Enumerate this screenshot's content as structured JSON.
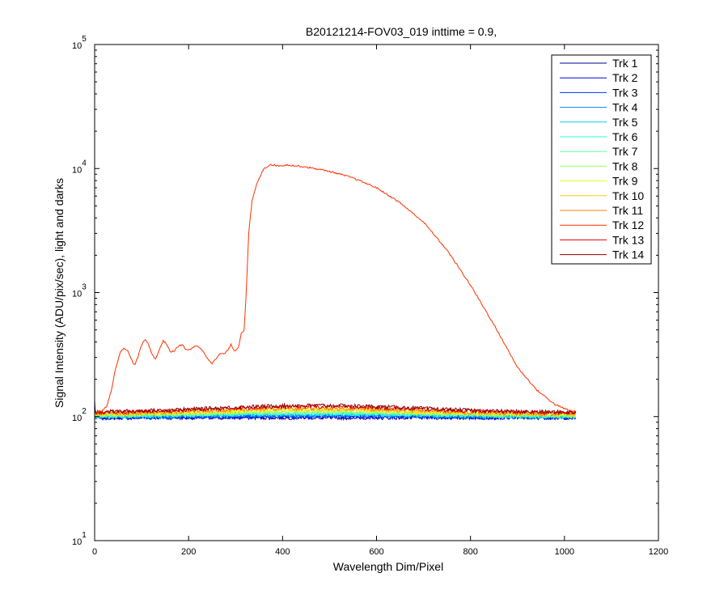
{
  "chart_data": {
    "type": "line",
    "title": "B20121214-FOV03_019 inttime = 0.9,",
    "xlabel": "Wavelength Dim/Pixel",
    "ylabel": "Signal Intensity (ADU/pix/sec), light and darks",
    "xlim": [
      0,
      1200
    ],
    "ylim": [
      10,
      100000
    ],
    "yscale": "log",
    "x_ticks": [
      "0",
      "200",
      "400",
      "600",
      "800",
      "1000",
      "1200"
    ],
    "y_ticks": [
      {
        "base": "10",
        "exp": "1"
      },
      {
        "base": "10",
        "exp": "2"
      },
      {
        "base": "10",
        "exp": "3"
      },
      {
        "base": "10",
        "exp": "4"
      },
      {
        "base": "10",
        "exp": "5"
      }
    ],
    "grid": false,
    "legend_position": "top-right",
    "series": [
      {
        "name": "Trk 1",
        "color": "#00008f",
        "baseline": 98
      },
      {
        "name": "Trk 2",
        "color": "#0000df",
        "baseline": 98
      },
      {
        "name": "Trk 3",
        "color": "#0030ff",
        "baseline": 99
      },
      {
        "name": "Trk 4",
        "color": "#0080ff",
        "baseline": 99
      },
      {
        "name": "Trk 5",
        "color": "#00cfff",
        "baseline": 100
      },
      {
        "name": "Trk 6",
        "color": "#20ffdf",
        "baseline": 100
      },
      {
        "name": "Trk 7",
        "color": "#60ff9f",
        "baseline": 101
      },
      {
        "name": "Trk 8",
        "color": "#9fff60",
        "baseline": 102
      },
      {
        "name": "Trk 9",
        "color": "#dfff20",
        "baseline": 103
      },
      {
        "name": "Trk 10",
        "color": "#ffcf00",
        "baseline": 104
      },
      {
        "name": "Trk 11",
        "color": "#ff8000",
        "baseline": 105
      },
      {
        "name": "Trk 12",
        "color": "#ff3000",
        "baseline": 106
      },
      {
        "name": "Trk 13",
        "color": "#df0000",
        "baseline": 107
      },
      {
        "name": "Trk 14",
        "color": "#8f0000",
        "baseline": 108
      }
    ],
    "highlighted_series": {
      "name": "Trk 12",
      "color": "#ff3000",
      "points": [
        [
          0,
          108
        ],
        [
          15,
          110
        ],
        [
          25,
          120
        ],
        [
          35,
          160
        ],
        [
          45,
          250
        ],
        [
          55,
          330
        ],
        [
          62,
          360
        ],
        [
          70,
          340
        ],
        [
          78,
          290
        ],
        [
          85,
          260
        ],
        [
          92,
          300
        ],
        [
          100,
          380
        ],
        [
          108,
          420
        ],
        [
          115,
          380
        ],
        [
          122,
          320
        ],
        [
          130,
          290
        ],
        [
          138,
          350
        ],
        [
          146,
          410
        ],
        [
          154,
          380
        ],
        [
          162,
          330
        ],
        [
          170,
          340
        ],
        [
          178,
          370
        ],
        [
          186,
          380
        ],
        [
          194,
          350
        ],
        [
          202,
          345
        ],
        [
          210,
          360
        ],
        [
          218,
          375
        ],
        [
          226,
          355
        ],
        [
          234,
          320
        ],
        [
          242,
          290
        ],
        [
          250,
          270
        ],
        [
          258,
          290
        ],
        [
          266,
          320
        ],
        [
          274,
          320
        ],
        [
          282,
          335
        ],
        [
          290,
          380
        ],
        [
          298,
          340
        ],
        [
          306,
          360
        ],
        [
          312,
          470
        ],
        [
          318,
          500
        ],
        [
          322,
          900
        ],
        [
          328,
          3000
        ],
        [
          335,
          5500
        ],
        [
          345,
          7500
        ],
        [
          360,
          10000
        ],
        [
          375,
          10800
        ],
        [
          390,
          10500
        ],
        [
          410,
          10700
        ],
        [
          450,
          10300
        ],
        [
          500,
          9500
        ],
        [
          550,
          8400
        ],
        [
          600,
          7000
        ],
        [
          650,
          5300
        ],
        [
          700,
          3700
        ],
        [
          750,
          2200
        ],
        [
          800,
          1150
        ],
        [
          850,
          550
        ],
        [
          900,
          250
        ],
        [
          940,
          165
        ],
        [
          980,
          125
        ],
        [
          1010,
          112
        ],
        [
          1024,
          110
        ]
      ]
    },
    "bumps": {
      "center": 470,
      "width": 300,
      "amplitude": 0.15
    }
  }
}
